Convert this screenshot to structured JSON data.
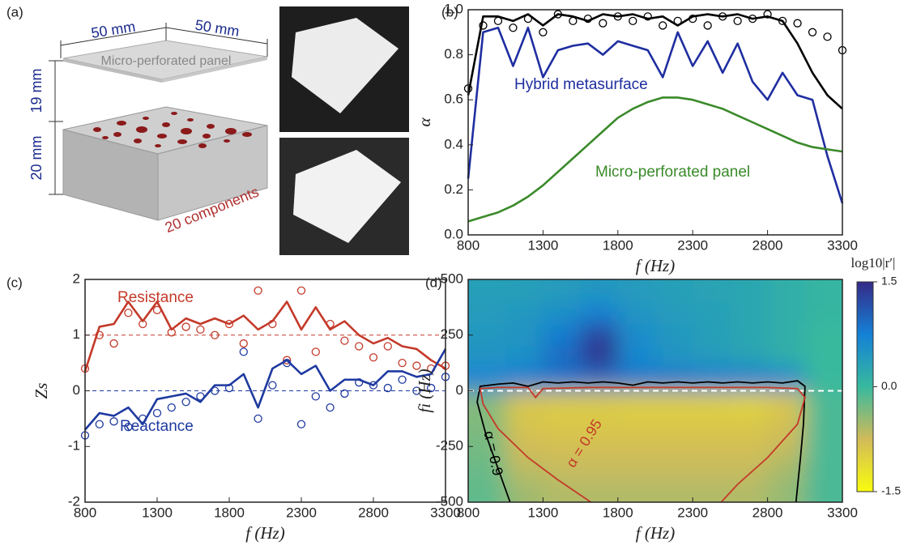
{
  "panel_a": {
    "label": "(a)",
    "width_1": "50 mm",
    "width_2": "50 mm",
    "panel_name": "Micro-perforated panel",
    "gap": "19 mm",
    "depth": "20 mm",
    "components": "20 components"
  },
  "chart_data": [
    {
      "type": "line",
      "label": "(b)",
      "xlabel": "f (Hz)",
      "ylabel": "α",
      "x": [
        800,
        900,
        1000,
        1100,
        1200,
        1300,
        1400,
        1500,
        1600,
        1700,
        1800,
        1900,
        2000,
        2100,
        2200,
        2300,
        2400,
        2500,
        2600,
        2700,
        2800,
        2900,
        3000,
        3100,
        3200,
        3300
      ],
      "xlim": [
        800,
        3300
      ],
      "xticks": [
        800,
        1300,
        1800,
        2300,
        2800,
        3300
      ],
      "ylim": [
        0,
        1
      ],
      "yticks": [
        {
          "value": 0,
          "label": "0.0"
        },
        {
          "value": 0.2,
          "label": "0.2"
        },
        {
          "value": 0.4,
          "label": "0.4"
        },
        {
          "value": 0.6,
          "label": "0.6"
        },
        {
          "value": 0.8,
          "label": "0.8"
        },
        {
          "value": 1,
          "label": "1.0"
        }
      ],
      "series": [
        {
          "style": "line",
          "color": "#000000",
          "values": [
            0.62,
            0.97,
            0.97,
            0.95,
            0.98,
            0.93,
            0.98,
            0.97,
            0.95,
            0.98,
            0.97,
            0.98,
            0.96,
            0.97,
            0.93,
            0.97,
            0.98,
            0.97,
            0.98,
            0.96,
            0.97,
            0.95,
            0.85,
            0.72,
            0.62,
            0.56
          ]
        },
        {
          "style": "marker",
          "color": "#000000",
          "values": [
            0.65,
            0.93,
            0.95,
            0.92,
            0.96,
            0.9,
            0.98,
            0.95,
            0.96,
            0.94,
            0.97,
            0.95,
            0.97,
            0.93,
            0.95,
            0.96,
            0.93,
            0.97,
            0.95,
            0.96,
            0.98,
            0.95,
            0.94,
            0.9,
            0.88,
            0.82
          ]
        },
        {
          "style": "line",
          "name": "Hybrid metasurface",
          "color": "#1f2ea0",
          "values": [
            0.25,
            0.9,
            0.92,
            0.75,
            0.92,
            0.7,
            0.82,
            0.84,
            0.85,
            0.8,
            0.86,
            0.84,
            0.82,
            0.7,
            0.9,
            0.75,
            0.86,
            0.72,
            0.85,
            0.68,
            0.6,
            0.72,
            0.62,
            0.6,
            0.35,
            0.14
          ]
        },
        {
          "style": "line",
          "name": "Micro-perforated panel",
          "color": "#3a8a2a",
          "values": [
            0.06,
            0.08,
            0.1,
            0.13,
            0.17,
            0.22,
            0.28,
            0.34,
            0.4,
            0.46,
            0.52,
            0.56,
            0.59,
            0.61,
            0.61,
            0.6,
            0.58,
            0.56,
            0.53,
            0.5,
            0.47,
            0.44,
            0.41,
            0.39,
            0.38,
            0.37
          ]
        }
      ]
    },
    {
      "type": "line",
      "label": "(c)",
      "xlabel": "f (Hz)",
      "ylabel": "Zs",
      "x": [
        800,
        900,
        1000,
        1100,
        1200,
        1300,
        1400,
        1500,
        1600,
        1700,
        1800,
        1900,
        2000,
        2100,
        2200,
        2300,
        2400,
        2500,
        2600,
        2700,
        2800,
        2900,
        3000,
        3100,
        3200,
        3300
      ],
      "xlim": [
        800,
        3300
      ],
      "xticks": [
        800,
        1300,
        1800,
        2300,
        2800,
        3300
      ],
      "ylim": [
        -2,
        2
      ],
      "yticks": [
        -2,
        -1,
        0,
        1,
        2
      ],
      "hlines": [
        {
          "value": 1,
          "color": "#c43a2a"
        },
        {
          "value": 0,
          "color": "#1f3aa0"
        }
      ],
      "series": [
        {
          "style": "line",
          "name": "Resistance",
          "color": "#c43a2a",
          "values": [
            0.35,
            1.15,
            1.2,
            1.6,
            1.25,
            1.6,
            1.1,
            1.3,
            1.2,
            1.3,
            1.2,
            1.35,
            1.1,
            1.25,
            1.6,
            1.1,
            1.5,
            1.1,
            1.25,
            1.0,
            0.85,
            0.95,
            0.8,
            0.75,
            0.55,
            0.4
          ]
        },
        {
          "style": "marker",
          "color": "#c43a2a",
          "values": [
            0.4,
            1.0,
            0.85,
            1.4,
            1.2,
            1.45,
            1.05,
            1.15,
            1.1,
            1.0,
            1.2,
            0.85,
            1.8,
            1.2,
            0.55,
            1.8,
            0.7,
            1.2,
            0.9,
            0.8,
            0.6,
            0.8,
            0.5,
            0.45,
            0.4,
            0.45
          ]
        },
        {
          "style": "line",
          "name": "Reactance",
          "color": "#1f3aa0",
          "values": [
            -0.7,
            -0.4,
            -0.45,
            -0.3,
            -0.6,
            -0.15,
            -0.1,
            -0.05,
            -0.2,
            0.1,
            0.1,
            0.3,
            -0.3,
            0.4,
            0.55,
            0.3,
            0.45,
            0.0,
            0.2,
            0.2,
            0.1,
            0.35,
            0.35,
            0.25,
            0.3,
            0.75
          ]
        },
        {
          "style": "marker",
          "color": "#1f3aa0",
          "values": [
            -0.8,
            -0.6,
            -0.55,
            -0.65,
            -0.5,
            -0.4,
            -0.3,
            -0.2,
            -0.1,
            0.0,
            0.05,
            0.7,
            -0.5,
            0.1,
            0.5,
            -0.6,
            -0.1,
            -0.3,
            -0.05,
            0.15,
            0.1,
            0.05,
            0.2,
            0.0,
            0.05,
            0.25
          ]
        }
      ]
    },
    {
      "type": "heatmap",
      "label": "(d)",
      "xlabel": "f (Hz)",
      "ylabel": "fi (Hz)",
      "xlim": [
        800,
        3300
      ],
      "xticks": [
        800,
        1300,
        1800,
        2300,
        2800,
        3300
      ],
      "ylim": [
        -500,
        500
      ],
      "yticks": [
        500,
        250,
        0,
        -250,
        -500
      ],
      "x": [
        925,
        1175,
        1425,
        1675,
        1925,
        2175,
        2425,
        2675,
        2925,
        3175
      ],
      "y": [
        450,
        350,
        250,
        150,
        50,
        -50,
        -150,
        -250,
        -350,
        -450
      ],
      "z": [
        [
          0.35,
          0.35,
          0.4,
          0.45,
          0.4,
          0.35,
          0.3,
          0.25,
          0.15,
          0.05
        ],
        [
          0.4,
          0.45,
          0.55,
          0.75,
          0.5,
          0.4,
          0.35,
          0.25,
          0.15,
          0.05
        ],
        [
          0.45,
          0.5,
          0.8,
          1.3,
          0.6,
          0.45,
          0.35,
          0.25,
          0.15,
          0.0
        ],
        [
          0.5,
          0.55,
          0.95,
          1.45,
          0.65,
          0.5,
          0.4,
          0.3,
          0.15,
          0.0
        ],
        [
          0.75,
          0.8,
          0.85,
          0.9,
          0.85,
          0.85,
          0.8,
          0.8,
          0.7,
          0.0
        ],
        [
          -0.4,
          -0.9,
          -0.95,
          -0.95,
          -1.0,
          -1.0,
          -1.0,
          -1.05,
          -0.9,
          -0.1
        ],
        [
          -0.35,
          -0.85,
          -0.9,
          -0.9,
          -0.9,
          -0.9,
          -0.9,
          -0.9,
          -0.8,
          -0.1
        ],
        [
          -0.3,
          -0.75,
          -0.8,
          -0.8,
          -0.8,
          -0.8,
          -0.8,
          -0.8,
          -0.7,
          -0.1
        ],
        [
          -0.25,
          -0.65,
          -0.7,
          -0.7,
          -0.7,
          -0.7,
          -0.7,
          -0.7,
          -0.55,
          -0.1
        ],
        [
          -0.2,
          -0.5,
          -0.6,
          -0.6,
          -0.6,
          -0.6,
          -0.6,
          -0.6,
          -0.45,
          -0.1
        ]
      ],
      "clim": [
        -1.5,
        1.5
      ],
      "colormap": [
        "#f9fb0e",
        "#d1bb59",
        "#38b99e",
        "#1481d6",
        "#352a87"
      ],
      "colorbar_title": "log10|r′|",
      "colorbar_ticks": [
        1.5,
        {
          "value": 0,
          "label": "0.0"
        },
        -1.5
      ],
      "hlines": [
        {
          "value": 0,
          "color": "#ffffff"
        }
      ],
      "contours": [
        {
          "name": "α = 0.9",
          "color": "#000000",
          "x": [
            1080,
            1000,
            920,
            860,
            880,
            1000,
            1100,
            1200,
            1300,
            1400,
            1500,
            1600,
            1700,
            1800,
            1900,
            2000,
            2100,
            2200,
            2300,
            2400,
            2500,
            2600,
            2700,
            2800,
            2900,
            3000,
            3050,
            3040,
            3020,
            2990
          ],
          "y": [
            -500,
            -350,
            -200,
            -50,
            20,
            30,
            35,
            20,
            40,
            35,
            40,
            35,
            40,
            35,
            25,
            40,
            35,
            40,
            35,
            40,
            35,
            40,
            35,
            40,
            35,
            45,
            20,
            -150,
            -300,
            -500
          ]
        },
        {
          "name": "α = 0.95",
          "color": "#c43a2a",
          "x": [
            1620,
            1400,
            1200,
            1000,
            900,
            880,
            1000,
            1200,
            1250,
            1300,
            1600,
            2000,
            2400,
            2800,
            3000,
            3050,
            3000,
            2800,
            2600,
            2490
          ],
          "y": [
            -500,
            -400,
            -300,
            -170,
            -60,
            10,
            15,
            15,
            -30,
            10,
            15,
            15,
            15,
            15,
            10,
            -30,
            -150,
            -300,
            -420,
            -500
          ]
        }
      ]
    }
  ]
}
